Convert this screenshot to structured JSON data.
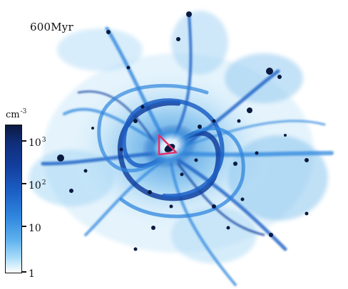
{
  "snapshot_label": "600Myr",
  "colorbar": {
    "unit_base": "cm",
    "unit_exponent": "-3",
    "ticks": [
      {
        "base": "10",
        "exponent": "3",
        "value": 1000
      },
      {
        "base": "10",
        "exponent": "2",
        "value": 100
      },
      {
        "base": "10",
        "exponent": "",
        "value": 10
      },
      {
        "base": "1",
        "exponent": "",
        "value": 1
      }
    ],
    "colors": [
      "#0a1a40",
      "#123f9e",
      "#2f86dd",
      "#a9dcf8",
      "#ffffff"
    ]
  },
  "marker": {
    "shape": "triangle",
    "color": "#e0306a"
  }
}
